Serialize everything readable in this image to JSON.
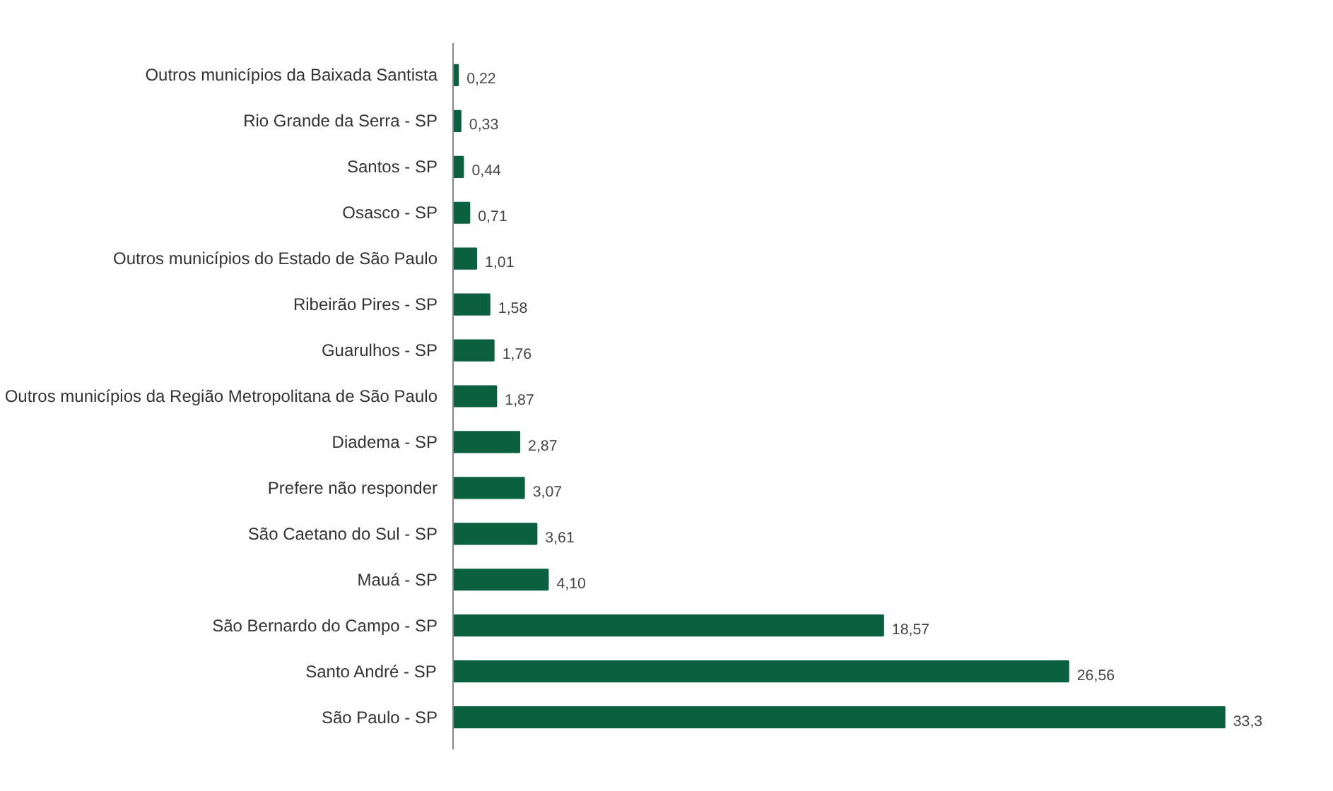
{
  "chart_data": {
    "type": "bar",
    "orientation": "horizontal",
    "categories": [
      "Outros municípios da Baixada Santista",
      "Rio Grande da Serra - SP",
      "Santos - SP",
      "Osasco - SP",
      "Outros municípios do Estado de São Paulo",
      "Ribeirão Pires - SP",
      "Guarulhos - SP",
      "Outros municípios da Região Metropolitana de São Paulo",
      "Diadema - SP",
      "Prefere não responder",
      "São Caetano do Sul - SP",
      "Mauá - SP",
      "São Bernardo do Campo - SP",
      "Santo André - SP",
      "São Paulo - SP"
    ],
    "values": [
      0.22,
      0.33,
      0.44,
      0.71,
      1.01,
      1.58,
      1.76,
      1.87,
      2.87,
      3.07,
      3.61,
      4.1,
      18.57,
      26.56,
      33.3
    ],
    "value_labels": [
      "0,22",
      "0,33",
      "0,44",
      "0,71",
      "1,01",
      "1,58",
      "1,76",
      "1,87",
      "2,87",
      "3,07",
      "3,61",
      "4,10",
      "18,57",
      "26,56",
      "33,3"
    ],
    "color": "#0b6040",
    "grid": false,
    "tick_labels": "y"
  }
}
